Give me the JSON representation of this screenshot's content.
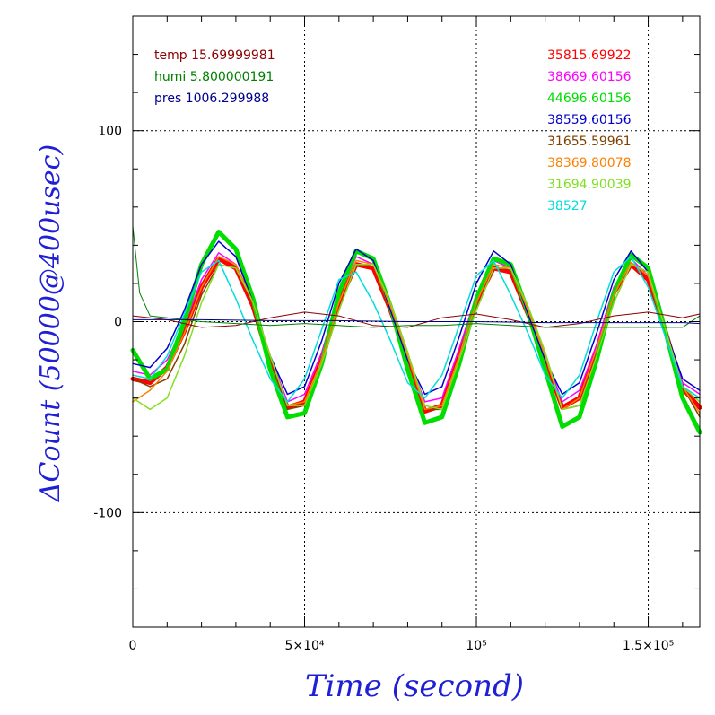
{
  "chart_data": {
    "type": "line",
    "xlabel": "Time (second)",
    "ylabel": "ΔCount (50000@400usec)",
    "xlim": [
      0,
      165000
    ],
    "ylim": [
      -160,
      160
    ],
    "grid": true,
    "x_ticks": [
      {
        "value": 0,
        "label": "0"
      },
      {
        "value": 50000,
        "label": "5×10⁴"
      },
      {
        "value": 100000,
        "label": "10⁵"
      },
      {
        "value": 150000,
        "label": "1.5×10⁵"
      }
    ],
    "y_ticks": [
      {
        "value": 100,
        "label": "100"
      },
      {
        "value": 0,
        "label": "0"
      },
      {
        "value": -100,
        "label": "-100"
      }
    ],
    "env_legend": [
      {
        "label": "temp 15.69999981",
        "color": "#8b0000"
      },
      {
        "label": "humi 5.800000191",
        "color": "#008000"
      },
      {
        "label": "pres 1006.299988",
        "color": "#00008b"
      }
    ],
    "series_legend": [
      {
        "label": "35815.69922",
        "color": "#ff0000"
      },
      {
        "label": "38669.60156",
        "color": "#ff00ff"
      },
      {
        "label": "44696.60156",
        "color": "#00dd00"
      },
      {
        "label": "38559.60156",
        "color": "#0000cc"
      },
      {
        "label": "31655.59961",
        "color": "#804000"
      },
      {
        "label": "38369.80078",
        "color": "#ff8000"
      },
      {
        "label": "31694.90039",
        "color": "#80e020"
      },
      {
        "label": "38527",
        "color": "#00dddd"
      }
    ],
    "series": [
      {
        "name": "35815.69922",
        "color": "#ff0000",
        "width": 5,
        "x": [
          0,
          5000,
          10000,
          15000,
          20000,
          25000,
          30000,
          35000,
          40000,
          45000,
          50000,
          55000,
          60000,
          65000,
          70000,
          75000,
          80000,
          85000,
          90000,
          95000,
          100000,
          105000,
          110000,
          115000,
          120000,
          125000,
          130000,
          135000,
          140000,
          145000,
          150000,
          155000,
          160000,
          165000
        ],
        "y": [
          -30,
          -32,
          -24,
          -5,
          18,
          33,
          28,
          8,
          -22,
          -45,
          -42,
          -20,
          10,
          30,
          28,
          6,
          -20,
          -47,
          -44,
          -18,
          10,
          28,
          26,
          4,
          -20,
          -45,
          -40,
          -15,
          15,
          30,
          22,
          -5,
          -35,
          -45
        ]
      },
      {
        "name": "38669.60156",
        "color": "#ff00ff",
        "width": 1.5,
        "x": [
          0,
          5000,
          10000,
          15000,
          20000,
          25000,
          30000,
          35000,
          40000,
          45000,
          50000,
          55000,
          60000,
          65000,
          70000,
          75000,
          80000,
          85000,
          90000,
          95000,
          100000,
          105000,
          110000,
          115000,
          120000,
          125000,
          130000,
          135000,
          140000,
          145000,
          150000,
          155000,
          160000,
          165000
        ],
        "y": [
          -26,
          -28,
          -20,
          -2,
          22,
          36,
          30,
          10,
          -18,
          -42,
          -38,
          -16,
          14,
          34,
          30,
          8,
          -18,
          -42,
          -40,
          -14,
          14,
          32,
          28,
          6,
          -18,
          -42,
          -36,
          -12,
          18,
          33,
          24,
          -5,
          -32,
          -38
        ]
      },
      {
        "name": "44696.60156",
        "color": "#00dd00",
        "width": 5,
        "x": [
          0,
          5000,
          10000,
          15000,
          20000,
          25000,
          30000,
          35000,
          40000,
          45000,
          50000,
          55000,
          60000,
          65000,
          70000,
          75000,
          80000,
          85000,
          90000,
          95000,
          100000,
          105000,
          110000,
          115000,
          120000,
          125000,
          130000,
          135000,
          140000,
          145000,
          150000,
          155000,
          160000,
          165000
        ],
        "y": [
          -15,
          -30,
          -25,
          0,
          30,
          47,
          38,
          12,
          -25,
          -50,
          -48,
          -22,
          15,
          37,
          33,
          8,
          -25,
          -53,
          -50,
          -22,
          12,
          33,
          30,
          5,
          -25,
          -55,
          -50,
          -20,
          15,
          35,
          28,
          -5,
          -40,
          -58
        ]
      },
      {
        "name": "38559.60156",
        "color": "#0000cc",
        "width": 1.5,
        "x": [
          0,
          5000,
          10000,
          15000,
          20000,
          25000,
          30000,
          35000,
          40000,
          45000,
          50000,
          55000,
          60000,
          65000,
          70000,
          75000,
          80000,
          85000,
          90000,
          95000,
          100000,
          105000,
          110000,
          115000,
          120000,
          125000,
          130000,
          135000,
          140000,
          145000,
          150000,
          155000,
          160000,
          165000
        ],
        "y": [
          -22,
          -24,
          -14,
          6,
          30,
          42,
          34,
          10,
          -18,
          -38,
          -34,
          -10,
          20,
          38,
          32,
          6,
          -20,
          -38,
          -34,
          -8,
          20,
          37,
          30,
          4,
          -20,
          -38,
          -32,
          -6,
          22,
          37,
          26,
          -4,
          -30,
          -36
        ]
      },
      {
        "name": "31655.59961",
        "color": "#804000",
        "width": 1.5,
        "x": [
          0,
          5000,
          10000,
          15000,
          20000,
          25000,
          30000,
          35000,
          40000,
          45000,
          50000,
          55000,
          60000,
          65000,
          70000,
          75000,
          80000,
          85000,
          90000,
          95000,
          100000,
          105000,
          110000,
          115000,
          120000,
          125000,
          130000,
          135000,
          140000,
          145000,
          150000,
          155000,
          160000,
          165000
        ],
        "y": [
          -30,
          -34,
          -30,
          -12,
          14,
          30,
          28,
          10,
          -18,
          -46,
          -44,
          -22,
          6,
          30,
          30,
          10,
          -16,
          -46,
          -46,
          -20,
          6,
          28,
          28,
          8,
          -16,
          -46,
          -44,
          -18,
          10,
          30,
          26,
          -4,
          -34,
          -50
        ]
      },
      {
        "name": "38369.80078",
        "color": "#ff8000",
        "width": 1.5,
        "x": [
          0,
          5000,
          10000,
          15000,
          20000,
          25000,
          30000,
          35000,
          40000,
          45000,
          50000,
          55000,
          60000,
          65000,
          70000,
          75000,
          80000,
          85000,
          90000,
          95000,
          100000,
          105000,
          110000,
          115000,
          120000,
          125000,
          130000,
          135000,
          140000,
          145000,
          150000,
          155000,
          160000,
          165000
        ],
        "y": [
          -42,
          -36,
          -26,
          -6,
          18,
          34,
          30,
          10,
          -18,
          -44,
          -42,
          -20,
          10,
          32,
          30,
          8,
          -18,
          -46,
          -44,
          -18,
          10,
          30,
          28,
          6,
          -18,
          -46,
          -40,
          -14,
          14,
          31,
          24,
          -4,
          -34,
          -48
        ]
      },
      {
        "name": "31694.90039",
        "color": "#80e020",
        "width": 1.5,
        "x": [
          0,
          5000,
          10000,
          15000,
          20000,
          25000,
          30000,
          35000,
          40000,
          45000,
          50000,
          55000,
          60000,
          65000,
          70000,
          75000,
          80000,
          85000,
          90000,
          95000,
          100000,
          105000,
          110000,
          115000,
          120000,
          125000,
          130000,
          135000,
          140000,
          145000,
          150000,
          155000,
          160000,
          165000
        ],
        "y": [
          -40,
          -46,
          -40,
          -18,
          10,
          30,
          28,
          10,
          -18,
          -44,
          -44,
          -22,
          6,
          30,
          30,
          10,
          -16,
          -44,
          -46,
          -20,
          6,
          28,
          28,
          8,
          -16,
          -46,
          -44,
          -18,
          10,
          30,
          26,
          -4,
          -34,
          -42
        ]
      },
      {
        "name": "38527",
        "color": "#00dddd",
        "width": 1.5,
        "x": [
          0,
          5000,
          10000,
          15000,
          20000,
          25000,
          30000,
          35000,
          40000,
          45000,
          50000,
          55000,
          60000,
          65000,
          70000,
          75000,
          80000,
          85000,
          90000,
          95000,
          100000,
          105000,
          110000,
          115000,
          120000,
          125000,
          130000,
          135000,
          140000,
          145000,
          150000,
          155000,
          160000,
          165000
        ],
        "y": [
          -28,
          -30,
          -18,
          4,
          26,
          32,
          12,
          -10,
          -30,
          -42,
          -30,
          -4,
          22,
          26,
          10,
          -10,
          -32,
          -40,
          -28,
          -2,
          24,
          32,
          14,
          -6,
          -28,
          -40,
          -28,
          0,
          26,
          34,
          18,
          -8,
          -34,
          -40
        ]
      },
      {
        "name": "temp",
        "color": "#8b0000",
        "width": 1,
        "x": [
          0,
          10000,
          20000,
          30000,
          40000,
          50000,
          60000,
          70000,
          80000,
          90000,
          100000,
          110000,
          120000,
          130000,
          140000,
          150000,
          160000,
          165000
        ],
        "y": [
          3,
          1,
          -3,
          -2,
          2,
          5,
          3,
          -2,
          -3,
          2,
          4,
          1,
          -3,
          -1,
          3,
          5,
          2,
          4
        ]
      },
      {
        "name": "humi",
        "color": "#008000",
        "width": 1,
        "x": [
          0,
          2000,
          5000,
          10000,
          20000,
          30000,
          40000,
          50000,
          60000,
          70000,
          80000,
          90000,
          100000,
          110000,
          120000,
          130000,
          140000,
          150000,
          160000,
          165000
        ],
        "y": [
          50,
          15,
          3,
          2,
          0,
          -1,
          -2,
          -1,
          -2,
          -3,
          -2,
          -2,
          -1,
          -2,
          -3,
          -3,
          -3,
          -3,
          -3,
          3
        ]
      },
      {
        "name": "pres",
        "color": "#00008b",
        "width": 1,
        "x": [
          0,
          20000,
          40000,
          60000,
          80000,
          100000,
          120000,
          140000,
          160000,
          165000
        ],
        "y": [
          1,
          1,
          0.5,
          0.5,
          0,
          0,
          -0.5,
          -0.5,
          -0.5,
          -1
        ]
      }
    ]
  }
}
